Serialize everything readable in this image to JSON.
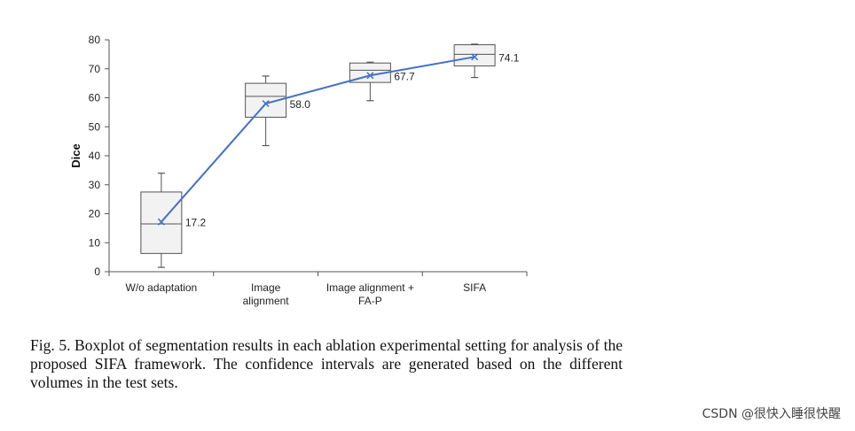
{
  "chart_data": {
    "type": "box",
    "ylabel": "Dice",
    "ylim": [
      0,
      80
    ],
    "yticks": [
      0,
      10,
      20,
      30,
      40,
      50,
      60,
      70,
      80
    ],
    "categories": [
      [
        "W/o adaptation"
      ],
      [
        "Image",
        "alignment"
      ],
      [
        "Image alignment +",
        "FA-P"
      ],
      [
        "SIFA"
      ]
    ],
    "boxes": [
      {
        "min": 1.5,
        "q1": 6.3,
        "median": 16.5,
        "q3": 27.5,
        "max": 34.0,
        "mean": 17.2
      },
      {
        "min": 43.5,
        "q1": 53.3,
        "median": 60.5,
        "q3": 65.0,
        "max": 67.5,
        "mean": 58.0
      },
      {
        "min": 59.0,
        "q1": 65.3,
        "median": 69.5,
        "q3": 72.0,
        "max": 72.3,
        "mean": 67.7
      },
      {
        "min": 67.0,
        "q1": 71.0,
        "median": 75.0,
        "q3": 78.3,
        "max": 78.5,
        "mean": 74.1
      }
    ],
    "mean_labels": [
      "17.2",
      "58.0",
      "67.7",
      "74.1"
    ],
    "colors": {
      "line": "#4472c4",
      "box_fill": "#f2f2f2",
      "box_stroke": "#555555",
      "axis": "#555555"
    }
  },
  "caption": "Fig. 5.  Boxplot of segmentation results in each ablation experimental setting for analysis of the proposed SIFA framework. The confidence intervals are generated based on the different volumes in the test sets.",
  "watermark": "CSDN @很快入睡很快醒"
}
